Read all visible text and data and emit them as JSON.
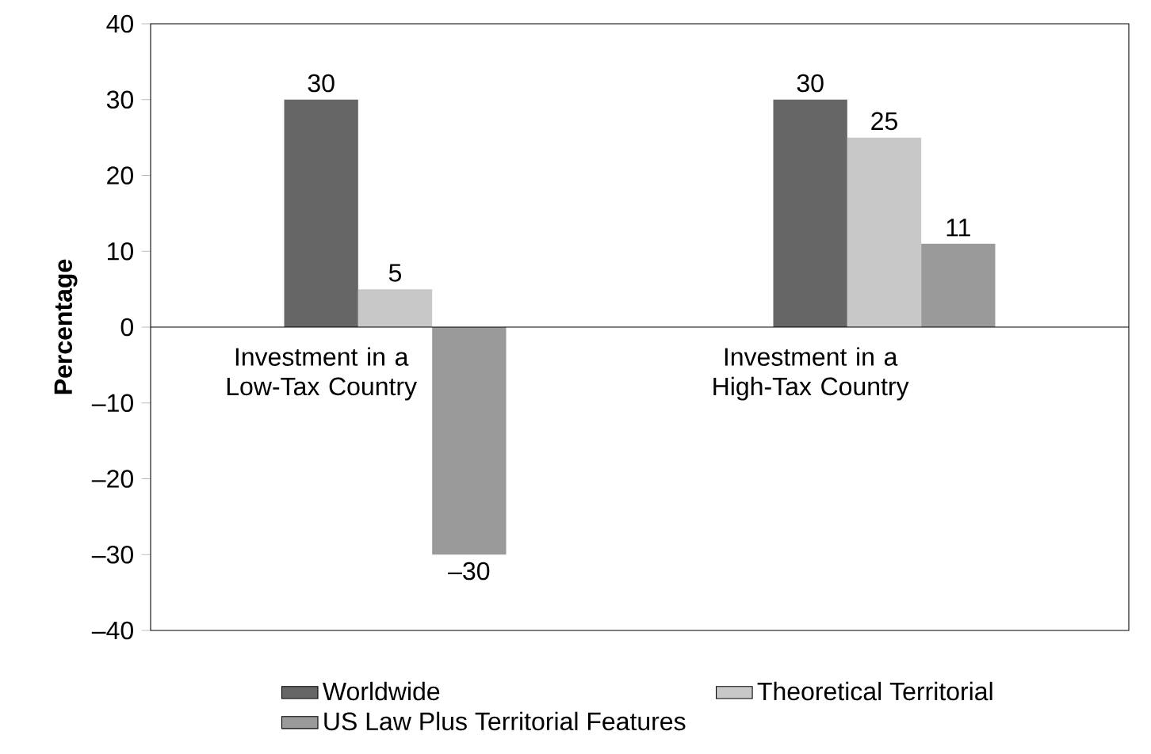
{
  "chart_data": {
    "type": "bar",
    "ylabel": "Percentage",
    "categories": [
      "Investment in a Low-Tax Country",
      "Investment in a High-Tax Country"
    ],
    "series": [
      {
        "name": "Worldwide",
        "color": "#666666",
        "values": [
          30,
          30
        ],
        "value_labels": [
          "30",
          "30"
        ]
      },
      {
        "name": "Theoretical Territorial",
        "color": "#c8c8c8",
        "values": [
          5,
          25
        ],
        "value_labels": [
          "5",
          "25"
        ]
      },
      {
        "name": "US Law Plus Territorial Features",
        "color": "#9a9a9a",
        "values": [
          -30,
          11
        ],
        "value_labels": [
          "–30",
          "11"
        ]
      }
    ],
    "ylim": [
      -40,
      40
    ],
    "yticks": [
      {
        "value": -40,
        "label": "–40"
      },
      {
        "value": -30,
        "label": "–30"
      },
      {
        "value": -20,
        "label": "–20"
      },
      {
        "value": -10,
        "label": "–10"
      },
      0,
      10,
      20,
      30,
      40
    ],
    "grid": false,
    "legend": "bottom"
  }
}
